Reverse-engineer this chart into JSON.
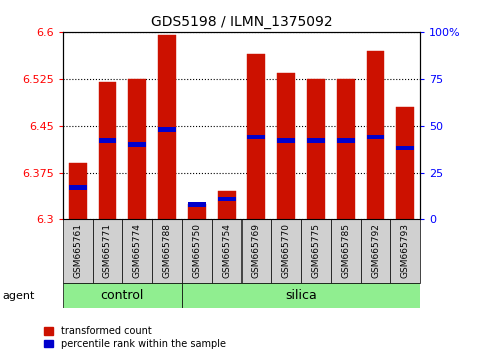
{
  "title": "GDS5198 / ILMN_1375092",
  "samples": [
    "GSM665761",
    "GSM665771",
    "GSM665774",
    "GSM665788",
    "GSM665750",
    "GSM665754",
    "GSM665769",
    "GSM665770",
    "GSM665775",
    "GSM665785",
    "GSM665792",
    "GSM665793"
  ],
  "groups": [
    "control",
    "control",
    "control",
    "control",
    "silica",
    "silica",
    "silica",
    "silica",
    "silica",
    "silica",
    "silica",
    "silica"
  ],
  "transformed_count": [
    6.39,
    6.52,
    6.525,
    6.595,
    6.325,
    6.345,
    6.565,
    6.535,
    6.525,
    6.525,
    6.57,
    6.48
  ],
  "percentile_rank": [
    17,
    42,
    40,
    48,
    8,
    11,
    44,
    42,
    42,
    42,
    44,
    38
  ],
  "ymin": 6.3,
  "ymax": 6.6,
  "yticks": [
    6.3,
    6.375,
    6.45,
    6.525,
    6.6
  ],
  "right_yticks": [
    0,
    25,
    50,
    75,
    100
  ],
  "bar_color": "#cc1100",
  "blue_color": "#0000cc",
  "green_color": "#90ee90",
  "bar_width": 0.6,
  "agent_label": "agent",
  "legend_items": [
    "transformed count",
    "percentile rank within the sample"
  ]
}
